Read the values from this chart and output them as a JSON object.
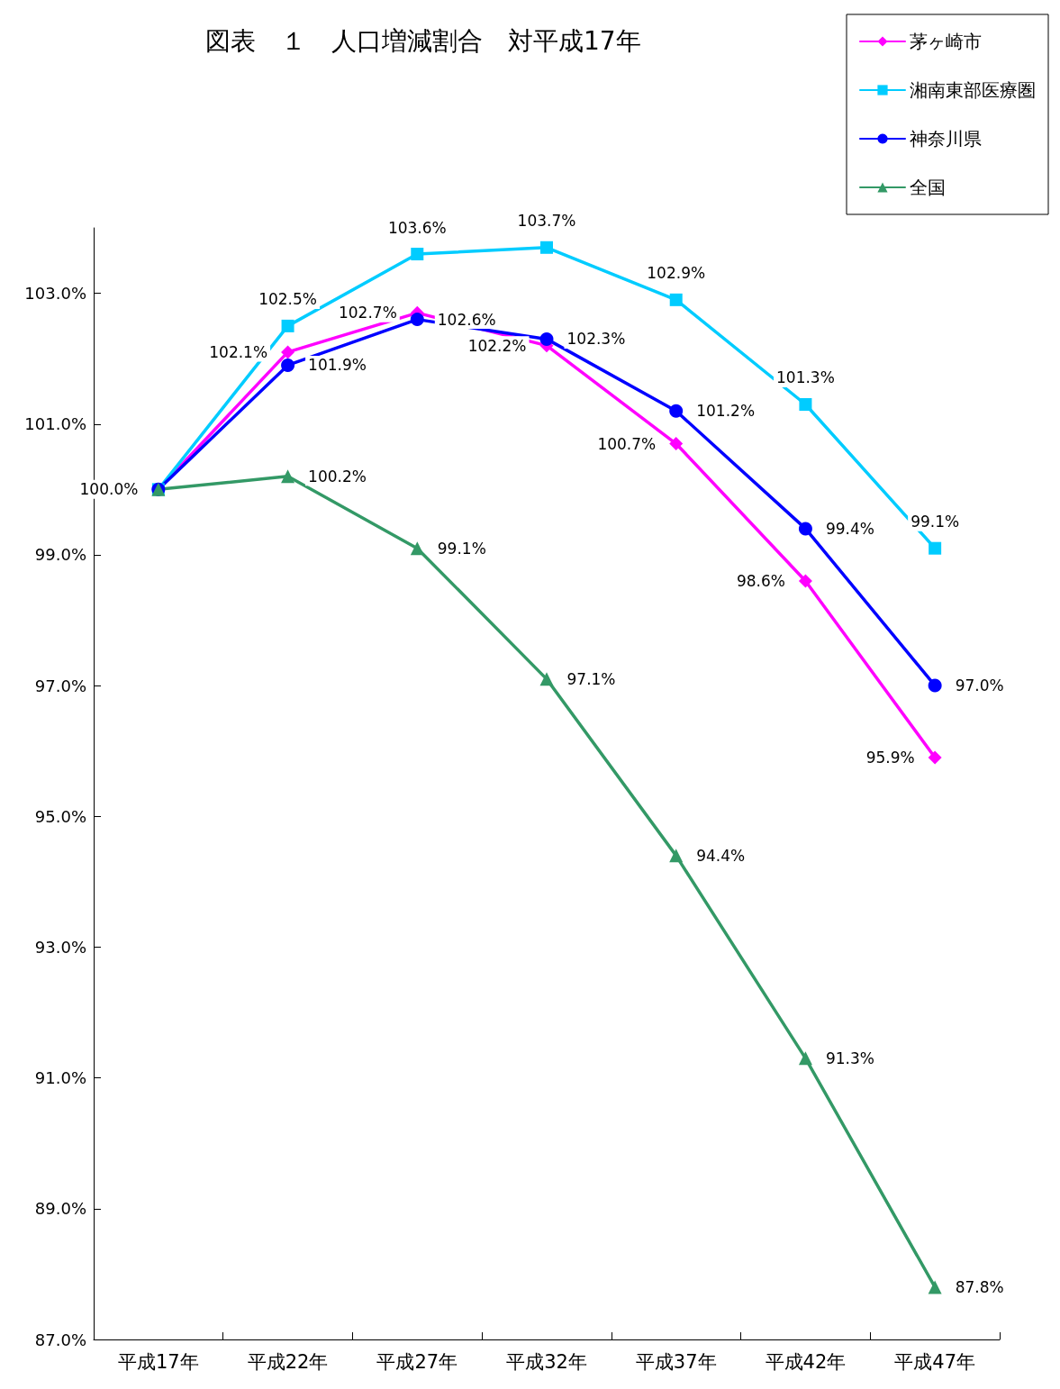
{
  "chart_data": {
    "type": "line",
    "title": "図表　１　人口増減割合　対平成17年",
    "categories": [
      "平成17年",
      "平成22年",
      "平成27年",
      "平成32年",
      "平成37年",
      "平成42年",
      "平成47年"
    ],
    "series": [
      {
        "name": "茅ヶ崎市",
        "color": "#ff00ff",
        "marker": "diamond",
        "values": [
          100.0,
          102.1,
          102.7,
          102.2,
          100.7,
          98.6,
          95.9
        ],
        "value_labels": [
          "100.0%",
          "102.1%",
          "102.7%",
          "102.2%",
          "100.7%",
          "98.6%",
          "95.9%"
        ]
      },
      {
        "name": "湘南東部医療圏",
        "color": "#00ccff",
        "marker": "square",
        "values": [
          100.0,
          102.5,
          103.6,
          103.7,
          102.9,
          101.3,
          99.1
        ],
        "value_labels": [
          null,
          "102.5%",
          "103.6%",
          "103.7%",
          "102.9%",
          "101.3%",
          "99.1%"
        ]
      },
      {
        "name": "神奈川県",
        "color": "#0000ff",
        "marker": "circle",
        "values": [
          100.0,
          101.9,
          102.6,
          102.3,
          101.2,
          99.4,
          97.0
        ],
        "value_labels": [
          null,
          "101.9%",
          "102.6%",
          "102.3%",
          "101.2%",
          "99.4%",
          "97.0%"
        ]
      },
      {
        "name": "全国",
        "color": "#339966",
        "marker": "triangle",
        "values": [
          100.0,
          100.2,
          99.1,
          97.1,
          94.4,
          91.3,
          87.8
        ],
        "value_labels": [
          null,
          "100.2%",
          "99.1%",
          "97.1%",
          "94.4%",
          "91.3%",
          "87.8%"
        ]
      }
    ],
    "ylim": [
      87,
      104
    ],
    "yticks": [
      {
        "value": 87,
        "label": "87.0%"
      },
      {
        "value": 89,
        "label": "89.0%"
      },
      {
        "value": 91,
        "label": "91.0%"
      },
      {
        "value": 93,
        "label": "93.0%"
      },
      {
        "value": 95,
        "label": "95.0%"
      },
      {
        "value": 97,
        "label": "97.0%"
      },
      {
        "value": 99,
        "label": "99.0%"
      },
      {
        "value": 101,
        "label": "101.0%"
      },
      {
        "value": 103,
        "label": "103.0%"
      }
    ],
    "grid": false,
    "legend": "top right",
    "line_style": "solid"
  }
}
